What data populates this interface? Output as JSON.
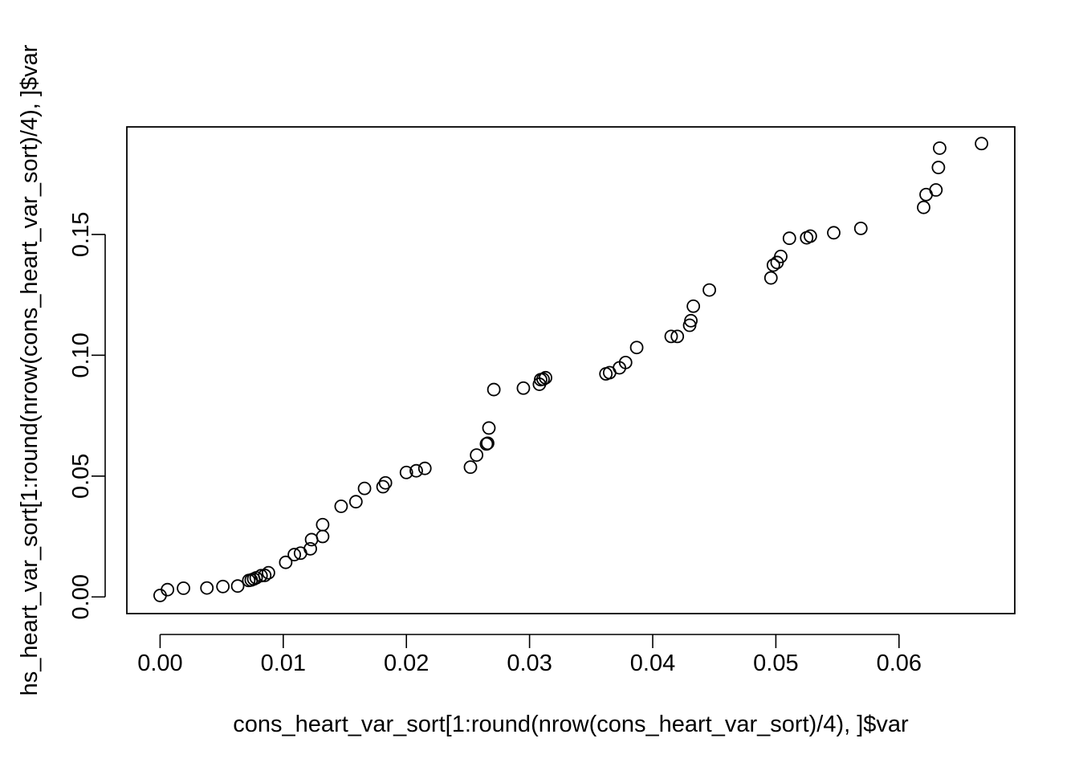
{
  "chart_data": {
    "type": "scatter",
    "title": "",
    "xlabel": "cons_heart_var_sort[1:round(nrow(cons_heart_var_sort)/4), ]$var",
    "ylabel": "hs_heart_var_sort[1:round(nrow(cons_heart_var_sort)/4), ]$var",
    "xlim": [
      -0.0027,
      0.0694
    ],
    "ylim": [
      -0.0069,
      0.1945
    ],
    "x_ticks": [
      0.0,
      0.01,
      0.02,
      0.03,
      0.04,
      0.05,
      0.06
    ],
    "x_tick_labels": [
      "0.00",
      "0.01",
      "0.02",
      "0.03",
      "0.04",
      "0.05",
      "0.06"
    ],
    "y_ticks": [
      0.0,
      0.05,
      0.1,
      0.15
    ],
    "y_tick_labels": [
      "0.00",
      "0.05",
      "0.10",
      "0.15"
    ],
    "grid": false,
    "legend": "none",
    "marker": "open-circle",
    "points": [
      [
        0.0,
        0.0006
      ],
      [
        0.0006,
        0.003
      ],
      [
        0.0019,
        0.0036
      ],
      [
        0.0038,
        0.0037
      ],
      [
        0.0051,
        0.0043
      ],
      [
        0.0063,
        0.0045
      ],
      [
        0.0072,
        0.0068
      ],
      [
        0.0074,
        0.007
      ],
      [
        0.0076,
        0.0074
      ],
      [
        0.0078,
        0.0079
      ],
      [
        0.0082,
        0.0088
      ],
      [
        0.0085,
        0.0089
      ],
      [
        0.0088,
        0.01
      ],
      [
        0.0102,
        0.0143
      ],
      [
        0.0109,
        0.0175
      ],
      [
        0.0114,
        0.0181
      ],
      [
        0.0122,
        0.0199
      ],
      [
        0.0123,
        0.0237
      ],
      [
        0.0132,
        0.025
      ],
      [
        0.0132,
        0.0299
      ],
      [
        0.0147,
        0.0375
      ],
      [
        0.0159,
        0.0394
      ],
      [
        0.0166,
        0.0449
      ],
      [
        0.0181,
        0.0456
      ],
      [
        0.0183,
        0.0472
      ],
      [
        0.02,
        0.0515
      ],
      [
        0.0208,
        0.0522
      ],
      [
        0.0215,
        0.0532
      ],
      [
        0.0252,
        0.0537
      ],
      [
        0.0257,
        0.0587
      ],
      [
        0.0265,
        0.0633
      ],
      [
        0.0266,
        0.0636
      ],
      [
        0.0267,
        0.0699
      ],
      [
        0.0271,
        0.0858
      ],
      [
        0.0295,
        0.0864
      ],
      [
        0.0308,
        0.088
      ],
      [
        0.0309,
        0.0899
      ],
      [
        0.0311,
        0.0901
      ],
      [
        0.0313,
        0.0907
      ],
      [
        0.0362,
        0.0923
      ],
      [
        0.0365,
        0.0928
      ],
      [
        0.0373,
        0.0948
      ],
      [
        0.0378,
        0.097
      ],
      [
        0.0387,
        0.1032
      ],
      [
        0.0415,
        0.1078
      ],
      [
        0.042,
        0.1078
      ],
      [
        0.043,
        0.1124
      ],
      [
        0.0431,
        0.1143
      ],
      [
        0.0433,
        0.1203
      ],
      [
        0.0446,
        0.127
      ],
      [
        0.0496,
        0.132
      ],
      [
        0.0498,
        0.1373
      ],
      [
        0.0501,
        0.1384
      ],
      [
        0.0504,
        0.1409
      ],
      [
        0.0511,
        0.1484
      ],
      [
        0.0525,
        0.1486
      ],
      [
        0.0528,
        0.1493
      ],
      [
        0.0547,
        0.1507
      ],
      [
        0.0569,
        0.1525
      ],
      [
        0.062,
        0.1612
      ],
      [
        0.0622,
        0.1665
      ],
      [
        0.063,
        0.1684
      ],
      [
        0.0632,
        0.1777
      ],
      [
        0.0633,
        0.1857
      ],
      [
        0.0667,
        0.1876
      ]
    ]
  }
}
